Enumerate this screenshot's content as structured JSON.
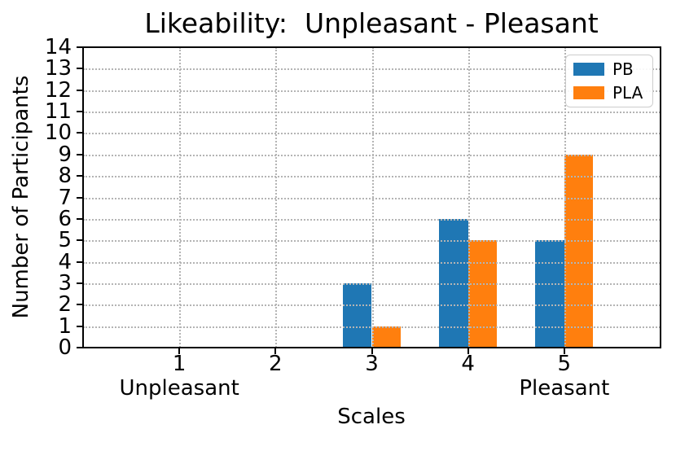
{
  "chart_data": {
    "type": "bar",
    "title": "Likeability:  Unpleasant - Pleasant",
    "xlabel": "Scales",
    "ylabel": "Number of Participants",
    "categories": [
      1,
      2,
      3,
      4,
      5
    ],
    "x_tick_labels": [
      "1",
      "2",
      "3",
      "4",
      "5"
    ],
    "x_sub_labels": [
      "Unpleasant",
      "",
      "",
      "",
      "Pleasant"
    ],
    "series": [
      {
        "name": "PB",
        "color": "#1f77b4",
        "values": [
          0,
          0,
          3,
          6,
          5
        ]
      },
      {
        "name": "PLA",
        "color": "#ff7f0e",
        "values": [
          0,
          0,
          1,
          5,
          9
        ]
      }
    ],
    "xlim": [
      0,
      6
    ],
    "ylim": [
      0,
      14
    ],
    "y_ticks": [
      0,
      1,
      2,
      3,
      4,
      5,
      6,
      7,
      8,
      9,
      10,
      11,
      12,
      13,
      14
    ],
    "bar_width": 0.3,
    "grid": "dotted",
    "grid_color": "#b4b4b4",
    "legend_position": "upper right",
    "spine_color": "#000000",
    "background": "#ffffff"
  }
}
